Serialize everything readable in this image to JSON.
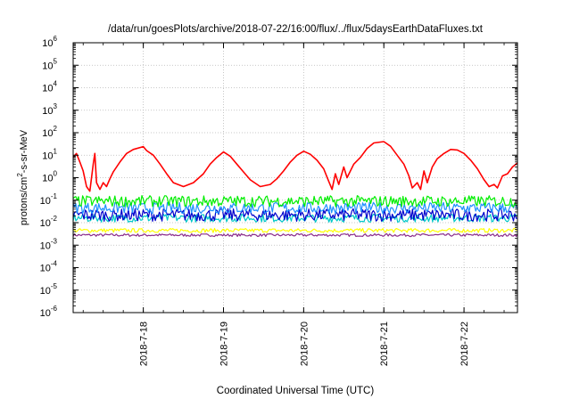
{
  "chart_data": {
    "type": "line",
    "title": "/data/run/goesPlots/archive/2018-07-22/16:00/flux/../flux/5daysEarthDataFluxes.txt",
    "xlabel": "Coordinated Universal Time (UTC)",
    "ylabel": {
      "base": "protons/cm",
      "sup": "2",
      "rest": "-s-sr-MeV"
    },
    "y_scale": "log",
    "ylim": [
      1e-06,
      1000000.0
    ],
    "y_ticks": [
      {
        "mantissa": "10",
        "exp": "-6",
        "value": 1e-06
      },
      {
        "mantissa": "10",
        "exp": "-5",
        "value": 1e-05
      },
      {
        "mantissa": "10",
        "exp": "-4",
        "value": 0.0001
      },
      {
        "mantissa": "10",
        "exp": "-3",
        "value": 0.001
      },
      {
        "mantissa": "10",
        "exp": "-2",
        "value": 0.01
      },
      {
        "mantissa": "10",
        "exp": "-1",
        "value": 0.1
      },
      {
        "mantissa": "10",
        "exp": "0",
        "value": 1
      },
      {
        "mantissa": "10",
        "exp": "1",
        "value": 10
      },
      {
        "mantissa": "10",
        "exp": "2",
        "value": 100
      },
      {
        "mantissa": "10",
        "exp": "3",
        "value": 1000
      },
      {
        "mantissa": "10",
        "exp": "4",
        "value": 10000
      },
      {
        "mantissa": "10",
        "exp": "5",
        "value": 100000
      },
      {
        "mantissa": "10",
        "exp": "6",
        "value": 1000000
      }
    ],
    "xlim": [
      "2018-07-17T03:00",
      "2018-07-22T16:00"
    ],
    "x_ticks": [
      {
        "label": "2018-7-18",
        "value": "2018-07-18T00:00"
      },
      {
        "label": "2018-7-19",
        "value": "2018-07-19T00:00"
      },
      {
        "label": "2018-7-20",
        "value": "2018-07-20T00:00"
      },
      {
        "label": "2018-7-21",
        "value": "2018-07-21T00:00"
      },
      {
        "label": "2018-7-22",
        "value": "2018-07-22T00:00"
      }
    ],
    "grid": true,
    "series": [
      {
        "color": "#8b2d8b",
        "level": 0.0028,
        "noise": 0.06,
        "values": []
      },
      {
        "color": "#ffff00",
        "level": 0.0045,
        "noise": 0.09,
        "values": []
      },
      {
        "color": "#00c8c8",
        "level": 0.016,
        "noise": 0.18,
        "values": []
      },
      {
        "color": "#0000cc",
        "level": 0.022,
        "noise": 0.28,
        "values": []
      },
      {
        "color": "#1e90ff",
        "level": 0.045,
        "noise": 0.25,
        "values": []
      },
      {
        "color": "#00ee00",
        "level": 0.09,
        "noise": 0.25,
        "values": []
      },
      {
        "color": "#ff0000",
        "values": [
          [
            "2018-07-17T03:00",
            8.0
          ],
          [
            "2018-07-17T04:00",
            12.0
          ],
          [
            "2018-07-17T05:00",
            5.0
          ],
          [
            "2018-07-17T06:00",
            2.0
          ],
          [
            "2018-07-17T07:00",
            0.4
          ],
          [
            "2018-07-17T08:00",
            0.25
          ],
          [
            "2018-07-17T09:00",
            4.0
          ],
          [
            "2018-07-17T09:30",
            12.0
          ],
          [
            "2018-07-17T10:00",
            0.6
          ],
          [
            "2018-07-17T11:00",
            0.3
          ],
          [
            "2018-07-17T12:00",
            0.6
          ],
          [
            "2018-07-17T13:00",
            0.4
          ],
          [
            "2018-07-17T14:00",
            0.9
          ],
          [
            "2018-07-17T15:00",
            1.8
          ],
          [
            "2018-07-17T17:00",
            5.0
          ],
          [
            "2018-07-17T19:00",
            12.0
          ],
          [
            "2018-07-17T21:00",
            18.0
          ],
          [
            "2018-07-18T00:00",
            24.0
          ],
          [
            "2018-07-18T01:00",
            16.0
          ],
          [
            "2018-07-18T03:00",
            10.0
          ],
          [
            "2018-07-18T05:00",
            4.0
          ],
          [
            "2018-07-18T07:00",
            1.5
          ],
          [
            "2018-07-18T09:00",
            0.6
          ],
          [
            "2018-07-18T12:00",
            0.4
          ],
          [
            "2018-07-18T15:00",
            0.6
          ],
          [
            "2018-07-18T18:00",
            1.5
          ],
          [
            "2018-07-18T20:00",
            4.0
          ],
          [
            "2018-07-18T22:00",
            8.0
          ],
          [
            "2018-07-19T00:00",
            14.0
          ],
          [
            "2018-07-19T02:00",
            9.0
          ],
          [
            "2018-07-19T04:00",
            4.0
          ],
          [
            "2018-07-19T06:00",
            1.8
          ],
          [
            "2018-07-19T08:00",
            0.8
          ],
          [
            "2018-07-19T11:00",
            0.4
          ],
          [
            "2018-07-19T14:00",
            0.5
          ],
          [
            "2018-07-19T16:00",
            0.9
          ],
          [
            "2018-07-19T18:00",
            2.0
          ],
          [
            "2018-07-19T20:00",
            5.0
          ],
          [
            "2018-07-19T22:00",
            10.0
          ],
          [
            "2018-07-20T00:00",
            15.0
          ],
          [
            "2018-07-20T02:00",
            11.0
          ],
          [
            "2018-07-20T04:00",
            6.0
          ],
          [
            "2018-07-20T06:00",
            2.5
          ],
          [
            "2018-07-20T07:30",
            0.7
          ],
          [
            "2018-07-20T08:30",
            0.3
          ],
          [
            "2018-07-20T09:30",
            1.5
          ],
          [
            "2018-07-20T10:30",
            0.5
          ],
          [
            "2018-07-20T12:00",
            3.0
          ],
          [
            "2018-07-20T13:00",
            1.0
          ],
          [
            "2018-07-20T15:00",
            4.0
          ],
          [
            "2018-07-20T17:00",
            8.0
          ],
          [
            "2018-07-20T19:00",
            20.0
          ],
          [
            "2018-07-20T21:00",
            35.0
          ],
          [
            "2018-07-21T00:00",
            40.0
          ],
          [
            "2018-07-21T02:00",
            25.0
          ],
          [
            "2018-07-21T04:00",
            10.0
          ],
          [
            "2018-07-21T06:00",
            4.0
          ],
          [
            "2018-07-21T07:30",
            1.2
          ],
          [
            "2018-07-21T08:30",
            0.35
          ],
          [
            "2018-07-21T10:00",
            0.6
          ],
          [
            "2018-07-21T11:00",
            0.3
          ],
          [
            "2018-07-21T12:00",
            2.0
          ],
          [
            "2018-07-21T13:00",
            0.6
          ],
          [
            "2018-07-21T14:30",
            3.0
          ],
          [
            "2018-07-21T16:00",
            7.0
          ],
          [
            "2018-07-21T18:00",
            12.0
          ],
          [
            "2018-07-21T20:00",
            18.0
          ],
          [
            "2018-07-21T22:00",
            17.0
          ],
          [
            "2018-07-22T00:00",
            12.0
          ],
          [
            "2018-07-22T02:00",
            6.0
          ],
          [
            "2018-07-22T04:00",
            2.5
          ],
          [
            "2018-07-22T06:00",
            0.8
          ],
          [
            "2018-07-22T07:30",
            0.4
          ],
          [
            "2018-07-22T09:00",
            0.5
          ],
          [
            "2018-07-22T10:00",
            0.35
          ],
          [
            "2018-07-22T11:30",
            1.2
          ],
          [
            "2018-07-22T13:00",
            1.5
          ],
          [
            "2018-07-22T14:30",
            3.0
          ],
          [
            "2018-07-22T16:00",
            4.5
          ]
        ]
      }
    ]
  }
}
